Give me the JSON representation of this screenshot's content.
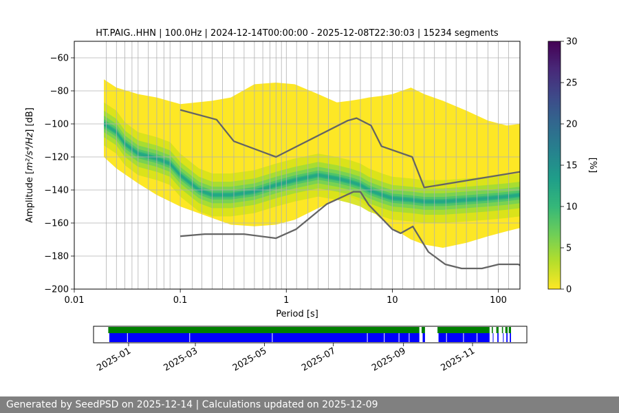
{
  "chart_data": {
    "type": "heatmap",
    "title": "HT.PAIG..HHN | 100.0Hz | 2024-12-14T00:00:00 - 2025-12-08T22:30:03 | 15234 segments",
    "xlabel": "Period [s]",
    "ylabel_main": "Amplitude [",
    "ylabel_unit": "m²/s⁴/Hz",
    "ylabel_tail": "] [dB]",
    "xscale": "log",
    "xlim": [
      0.01,
      160
    ],
    "ylim": [
      -200,
      -50
    ],
    "xticks": [
      {
        "value": 0.01,
        "label": "0.01"
      },
      {
        "value": 0.1,
        "label": "0.1"
      },
      {
        "value": 1,
        "label": "1"
      },
      {
        "value": 10,
        "label": "10"
      },
      {
        "value": 100,
        "label": "100"
      }
    ],
    "yticks": [
      -60,
      -80,
      -100,
      -120,
      -140,
      -160,
      -180,
      -200
    ],
    "period_gridlines": [
      0.02,
      0.025,
      0.03,
      0.035,
      0.04,
      0.05,
      0.06,
      0.07,
      0.08,
      0.1,
      0.13,
      0.16,
      0.2,
      0.25,
      0.32,
      0.4,
      0.5,
      0.6,
      0.7,
      0.8,
      0.9,
      1.0,
      1.25,
      1.6,
      2,
      2.5,
      3.2,
      4,
      5,
      6.3,
      8,
      10,
      12.5,
      16,
      20,
      25,
      32,
      40,
      50,
      63,
      80,
      100,
      125
    ],
    "grid": true,
    "colorbar": {
      "label": "[%]",
      "range": [
        0,
        30
      ],
      "ticks": [
        0,
        5,
        10,
        15,
        20,
        25,
        30
      ],
      "colormap": [
        "#fde725",
        "#b5de2b",
        "#6ece58",
        "#35b779",
        "#1f9e89",
        "#26828e",
        "#31688e",
        "#3e4989",
        "#482878",
        "#440154"
      ]
    },
    "psd_extent": {
      "periods": [
        0.019,
        0.025,
        0.04,
        0.06,
        0.1,
        0.2,
        0.3,
        0.5,
        0.8,
        1.2,
        2,
        3,
        4,
        5,
        6,
        8,
        10,
        15,
        20,
        30,
        50,
        80,
        120,
        160
      ],
      "upper_db": [
        -73,
        -78,
        -82,
        -84,
        -88,
        -86,
        -84,
        -76,
        -75,
        -76,
        -82,
        -87,
        -86,
        -85,
        -84,
        -83,
        -82,
        -78,
        -82,
        -86,
        -92,
        -98,
        -101,
        -100
      ],
      "lower_db": [
        -120,
        -127,
        -136,
        -143,
        -150,
        -157,
        -161,
        -162,
        -161,
        -158,
        -151,
        -146,
        -144,
        -147,
        -151,
        -158,
        -163,
        -170,
        -173,
        -175,
        -172,
        -168,
        -165,
        -163
      ]
    },
    "psd_mode": {
      "periods": [
        0.019,
        0.025,
        0.03,
        0.04,
        0.06,
        0.08,
        0.1,
        0.15,
        0.2,
        0.3,
        0.5,
        0.8,
        1.2,
        2,
        3,
        4,
        5,
        6,
        8,
        10,
        15,
        20,
        30,
        50,
        80,
        120,
        160
      ],
      "db": [
        -100,
        -105,
        -112,
        -118,
        -121,
        -124,
        -131,
        -140,
        -143,
        -143,
        -141,
        -137,
        -134,
        -131,
        -133,
        -135,
        -137,
        -140,
        -143,
        -145,
        -146,
        -147,
        -147,
        -146,
        -145,
        -144,
        -143
      ]
    },
    "nhnm": {
      "periods": [
        0.1,
        0.22,
        0.32,
        0.8,
        3.8,
        4.6,
        6.3,
        7.9,
        15.4,
        20,
        160
      ],
      "db": [
        -91.5,
        -97.4,
        -110.5,
        -120,
        -98,
        -96.5,
        -101,
        -113.5,
        -120,
        -138.5,
        -129
      ]
    },
    "nlnm": {
      "periods": [
        0.1,
        0.17,
        0.4,
        0.8,
        1.24,
        2.4,
        4.3,
        5,
        6,
        10,
        12,
        15.6,
        21.9,
        31.6,
        45,
        70,
        101,
        154,
        160
      ],
      "db": [
        -168,
        -166.7,
        -166.7,
        -169.2,
        -163.7,
        -148.6,
        -141.1,
        -141.1,
        -149,
        -163.8,
        -166.2,
        -162.1,
        -177.5,
        -185,
        -187.5,
        -187.5,
        -185,
        -185,
        -185.5
      ]
    },
    "timeline": {
      "xticks": [
        {
          "date": "2025-01-01",
          "label": "2025-01"
        },
        {
          "date": "2025-03-01",
          "label": "2025-03"
        },
        {
          "date": "2025-05-01",
          "label": "2025-05"
        },
        {
          "date": "2025-07-01",
          "label": "2025-07"
        },
        {
          "date": "2025-09-01",
          "label": "2025-09"
        },
        {
          "date": "2025-11-01",
          "label": "2025-11"
        }
      ],
      "range": [
        "2024-12-01",
        "2025-12-19"
      ],
      "data_available": [
        [
          "2024-12-14",
          "2025-09-15"
        ],
        [
          "2025-09-17",
          "2025-09-20"
        ],
        [
          "2025-10-01",
          "2025-11-16"
        ],
        [
          "2025-11-18",
          "2025-11-19"
        ],
        [
          "2025-11-22",
          "2025-11-24"
        ],
        [
          "2025-11-27",
          "2025-11-28"
        ],
        [
          "2025-11-30",
          "2025-12-02"
        ],
        [
          "2025-12-03",
          "2025-12-05"
        ]
      ],
      "processed_gaps": [
        "2024-12-31",
        "2025-02-24",
        "2025-05-08",
        "2025-07-31",
        "2025-08-15",
        "2025-08-28",
        "2025-09-06",
        "2025-10-09",
        "2025-10-24",
        "2025-11-05"
      ],
      "colors": {
        "data": "#007f00",
        "processed": "#0000ff"
      }
    }
  },
  "footer": {
    "text": "Generated by SeedPSD on 2025-12-14 | Calculations updated on 2025-12-09"
  }
}
